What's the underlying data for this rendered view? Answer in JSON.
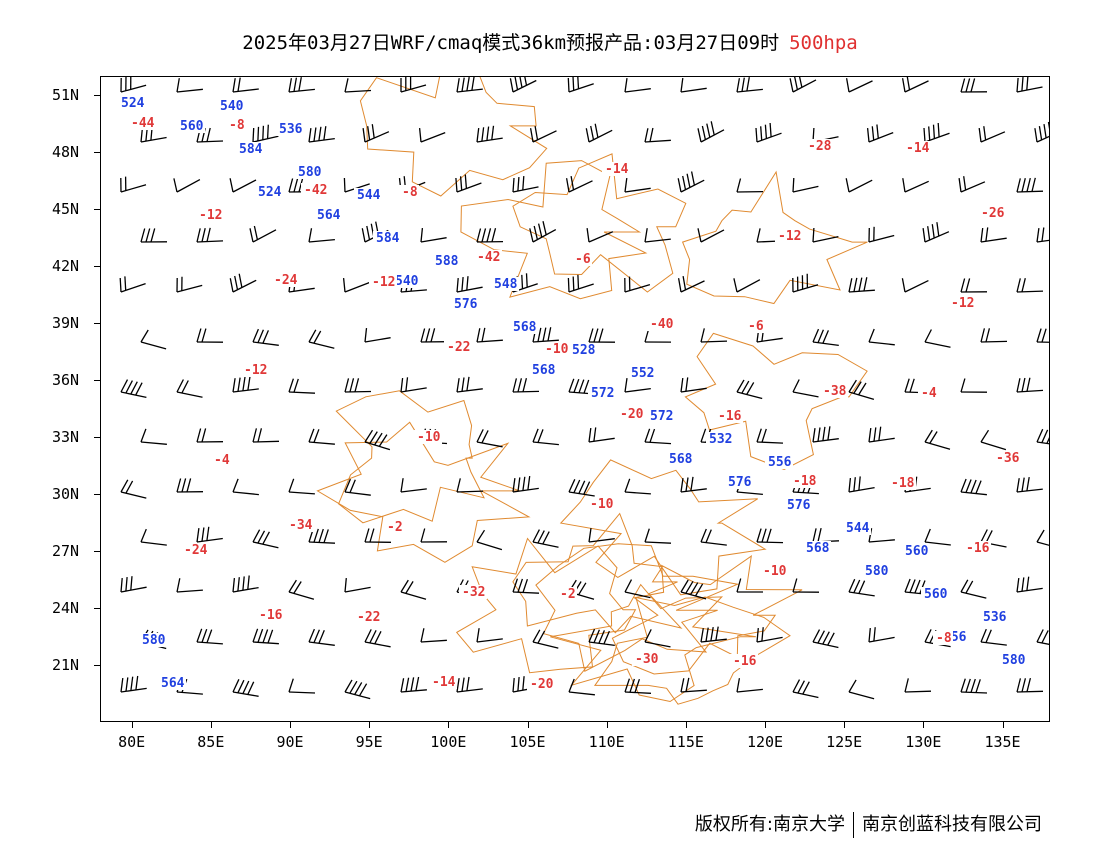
{
  "title": {
    "text": "2025年03月27日WRF/cmaq模式36km预报产品:03月27日09时",
    "level": "500hpa"
  },
  "axes": {
    "lat_labels": [
      "51N",
      "48N",
      "45N",
      "42N",
      "39N",
      "36N",
      "33N",
      "30N",
      "27N",
      "24N",
      "21N"
    ],
    "lat_values": [
      51,
      48,
      45,
      42,
      39,
      36,
      33,
      30,
      27,
      24,
      21
    ],
    "lon_labels": [
      "80E",
      "85E",
      "90E",
      "95E",
      "100E",
      "105E",
      "110E",
      "115E",
      "120E",
      "125E",
      "130E",
      "135E"
    ],
    "lon_values": [
      80,
      85,
      90,
      95,
      100,
      105,
      110,
      115,
      120,
      125,
      130,
      135
    ],
    "lon_range": [
      78,
      138
    ],
    "lat_range": [
      18,
      52
    ]
  },
  "colors": {
    "height_contour": "#2040e0",
    "temperature_contour": "#e03838",
    "border": "#e08a30",
    "wind_barb": "#000000",
    "level_text": "#e03030"
  },
  "height_labels": [
    "524",
    "524",
    "540",
    "568",
    "568",
    "568",
    "556",
    "560",
    "564",
    "576",
    "572",
    "576",
    "580",
    "580",
    "584",
    "584",
    "568",
    "572",
    "576",
    "560",
    "564",
    "580",
    "588",
    "528",
    "532",
    "544",
    "536",
    "540",
    "544",
    "548",
    "552",
    "556",
    "560",
    "580",
    "536"
  ],
  "temperature_labels": [
    "-44",
    "-42",
    "-42",
    "-40",
    "-38",
    "-36",
    "-34",
    "-32",
    "-30",
    "-28",
    "-26",
    "-24",
    "-22",
    "-20",
    "-18",
    "-16",
    "-16",
    "-14",
    "-14",
    "-12",
    "-12",
    "-12",
    "-10",
    "-10",
    "-10",
    "-8",
    "-8",
    "-8",
    "-6",
    "-6",
    "-4",
    "-4",
    "-2",
    "-2",
    "-16",
    "-14",
    "-12",
    "-12",
    "-10",
    "-16",
    "-18",
    "-24",
    "-22",
    "-20"
  ],
  "chart_data": {
    "type": "contour_map",
    "level": "500hpa",
    "fields": [
      "geopotential height (blue)",
      "temperature (red)",
      "wind barbs (black)"
    ]
  },
  "footer": {
    "left": "版权所有:南京大学",
    "right": "南京创蓝科技有限公司"
  }
}
